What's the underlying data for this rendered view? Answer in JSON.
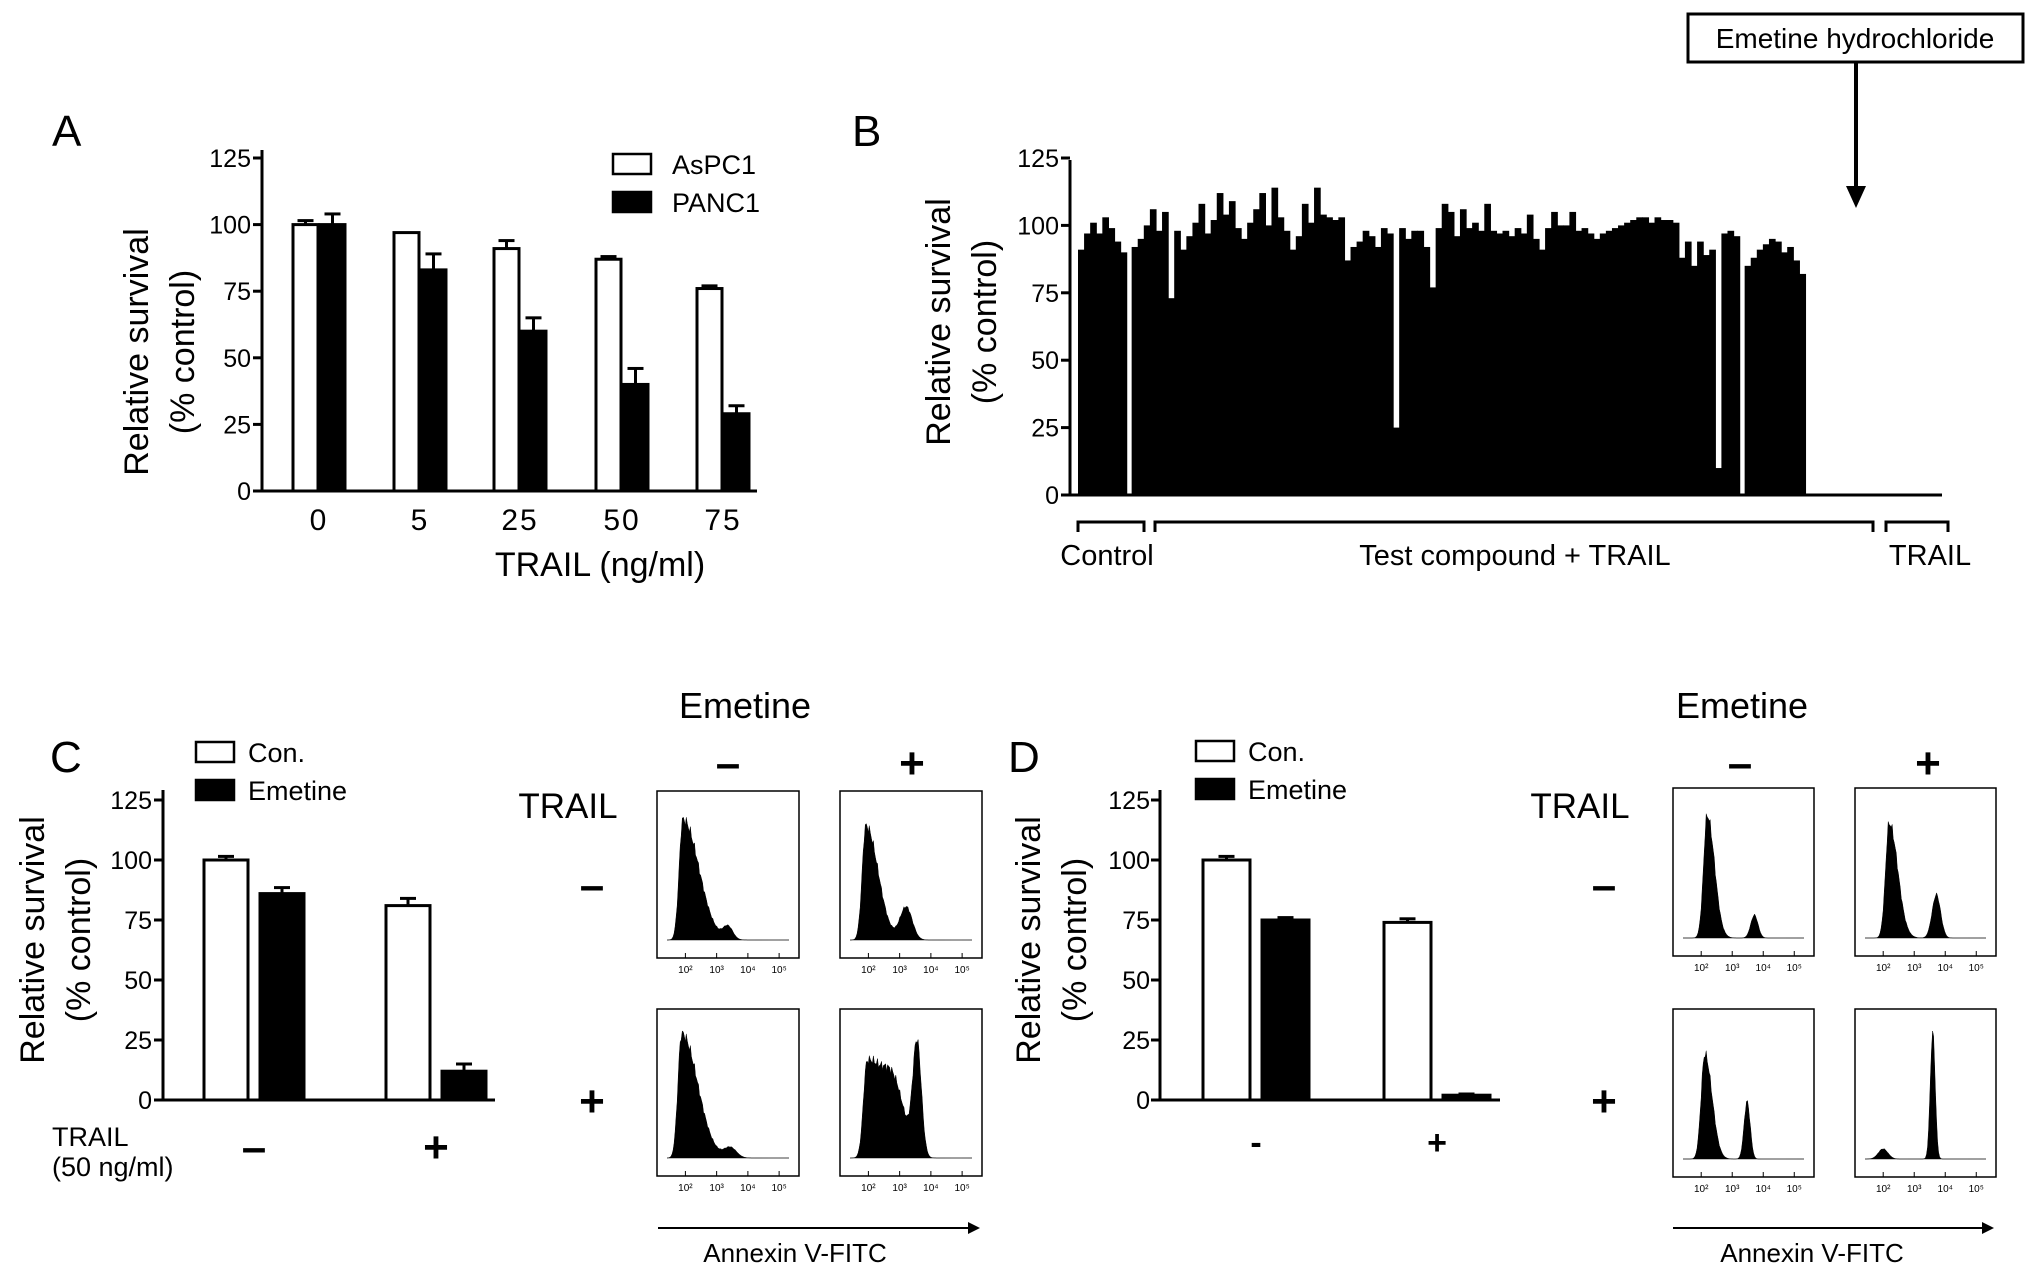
{
  "panels": {
    "A": {
      "letter": "A",
      "ylabel1": "Relative survival",
      "ylabel2": "(% control)",
      "xlabel": "TRAIL (ng/ml)",
      "yticks": [
        "0",
        "25",
        "50",
        "75",
        "100",
        "125"
      ],
      "legend": [
        "AsPC1",
        "PANC1"
      ]
    },
    "B": {
      "letter": "B",
      "ylabel1": "Relative survival",
      "ylabel2": "(% control)",
      "yticks": [
        "0",
        "25",
        "50",
        "75",
        "100",
        "125"
      ],
      "annotation": "Emetine hydrochloride",
      "groups": [
        "Control",
        "Test compound + TRAIL",
        "TRAIL"
      ]
    },
    "C": {
      "letter": "C",
      "ylabel1": "Relative survival",
      "ylabel2": "(% control)",
      "yticks": [
        "0",
        "25",
        "50",
        "75",
        "100",
        "125"
      ],
      "legend": [
        "Con.",
        "Emetine"
      ],
      "trail_label": "TRAIL",
      "trail_conc": "(50 ng/ml)",
      "x_signs": [
        "–",
        "+"
      ],
      "facs": {
        "emetine_header": "Emetine",
        "trail_header": "TRAIL",
        "col_signs": [
          "–",
          "+"
        ],
        "row_signs": [
          "–",
          "+"
        ],
        "xaxis": "Annexin V-FITC"
      }
    },
    "D": {
      "letter": "D",
      "ylabel1": "Relative survival",
      "ylabel2": "(% control)",
      "yticks": [
        "0",
        "25",
        "50",
        "75",
        "100",
        "125"
      ],
      "legend": [
        "Con.",
        "Emetine"
      ],
      "x_signs": [
        "-",
        "+"
      ],
      "facs": {
        "emetine_header": "Emetine",
        "trail_header": "TRAIL",
        "col_signs": [
          "–",
          "+"
        ],
        "row_signs": [
          "–",
          "+"
        ],
        "xaxis": "Annexin V-FITC"
      }
    }
  },
  "facs_ticks": [
    "10²",
    "10³",
    "10⁴",
    "10⁵"
  ],
  "chart_data": [
    {
      "panel": "A",
      "type": "bar",
      "categories": [
        "0",
        "5",
        "25",
        "50",
        "75"
      ],
      "series": [
        {
          "name": "AsPC1",
          "fill": "#ffffff",
          "values": [
            100,
            97,
            91,
            87,
            76
          ],
          "errors": [
            1.5,
            0,
            3,
            1,
            1
          ]
        },
        {
          "name": "PANC1",
          "fill": "#000000",
          "values": [
            100,
            83,
            60,
            40,
            29
          ],
          "errors": [
            4,
            6,
            5,
            6,
            3
          ]
        }
      ],
      "xlabel": "TRAIL (ng/ml)",
      "ylabel": "Relative survival (% control)",
      "ylim": [
        0,
        125
      ]
    },
    {
      "panel": "B",
      "type": "bar",
      "series": [
        {
          "name": "Control",
          "values": [
            91,
            97,
            101,
            97,
            103,
            99,
            94,
            90
          ]
        },
        {
          "name": "Test compound + TRAIL",
          "values": [
            92,
            95,
            100,
            106,
            98,
            105,
            73,
            98,
            91,
            96,
            101,
            108,
            97,
            102,
            112,
            104,
            109,
            99,
            95,
            101,
            106,
            112,
            100,
            114,
            103,
            98,
            91,
            96,
            108,
            101,
            114,
            104,
            103,
            102,
            103,
            87,
            92,
            94,
            98,
            96,
            92,
            99,
            97,
            25,
            99,
            95,
            98,
            98,
            92,
            77,
            99,
            108,
            105,
            96,
            106,
            99,
            101,
            98,
            108,
            98,
            97,
            98,
            96,
            99,
            97,
            104,
            95,
            91,
            99,
            105,
            100,
            100,
            105,
            98,
            99,
            97,
            95,
            97,
            98,
            99,
            100,
            101,
            102,
            103,
            103,
            101,
            103,
            102,
            102,
            101,
            88,
            94,
            85,
            94,
            89,
            91,
            10,
            97,
            98,
            96
          ]
        },
        {
          "name": "TRAIL",
          "values": [
            85,
            88,
            91,
            93,
            95,
            94,
            90,
            92,
            87,
            82
          ]
        }
      ],
      "highlight": {
        "label": "Emetine hydrochloride",
        "series": "Test compound + TRAIL",
        "value": 10
      },
      "groups": [
        "Control",
        "Test compound + TRAIL",
        "TRAIL"
      ],
      "ylabel": "Relative survival (% control)",
      "ylim": [
        0,
        125
      ]
    },
    {
      "panel": "C",
      "type": "bar",
      "categories": [
        "–",
        "+"
      ],
      "series": [
        {
          "name": "Con.",
          "fill": "#ffffff",
          "values": [
            100,
            81
          ],
          "errors": [
            1.5,
            3
          ]
        },
        {
          "name": "Emetine",
          "fill": "#000000",
          "values": [
            86,
            12
          ],
          "errors": [
            2.5,
            3
          ]
        }
      ],
      "xlabel": "TRAIL (50 ng/ml)",
      "ylabel": "Relative survival (% control)",
      "ylim": [
        0,
        125
      ]
    },
    {
      "panel": "D",
      "type": "bar",
      "categories": [
        "-",
        "+"
      ],
      "series": [
        {
          "name": "Con.",
          "fill": "#ffffff",
          "values": [
            100,
            74
          ],
          "errors": [
            1.5,
            1.5
          ]
        },
        {
          "name": "Emetine",
          "fill": "#000000",
          "values": [
            75,
            2
          ],
          "errors": [
            1,
            0.5
          ]
        }
      ],
      "ylabel": "Relative survival (% control)",
      "ylim": [
        0,
        125
      ]
    }
  ]
}
